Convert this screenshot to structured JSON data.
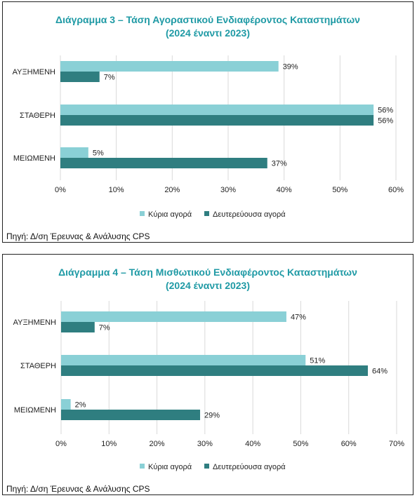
{
  "charts": [
    {
      "title": "Διάγραμμα 3 – Τάση Αγοραστικού Ενδιαφέροντος Καταστημάτων",
      "subtitle": "(2024 έναντι 2023)",
      "source": "Πηγή: Δ/ση Έρευνας & Ανάλυσης CPS"
    },
    {
      "title": "Διάγραμμα 4 – Τάση Μισθωτικού Ενδιαφέροντος Καταστημάτων",
      "subtitle": "(2024 έναντι 2023)",
      "source": "Πηγή: Δ/ση Έρευνας & Ανάλυσης CPS"
    }
  ],
  "colors": {
    "primary": "#8ad0d6",
    "secondary": "#2f7e80",
    "title": "#1f9aa5",
    "grid": "#d9d9d9"
  },
  "chart_data": [
    {
      "type": "bar",
      "orientation": "horizontal",
      "title": "Διάγραμμα 3 – Τάση Αγοραστικού Ενδιαφέροντος Καταστημάτων",
      "subtitle": "(2024 έναντι 2023)",
      "categories": [
        "ΑΥΞΗΜΕΝΗ",
        "ΣΤΑΘΕΡΗ",
        "ΜΕΙΩΜΕΝΗ"
      ],
      "series": [
        {
          "name": "Κύρια αγορά",
          "values": [
            39,
            56,
            5
          ]
        },
        {
          "name": "Δευτερεύουσα αγορά",
          "values": [
            7,
            56,
            37
          ]
        }
      ],
      "data_labels": [
        [
          "39%",
          "56%",
          "5%"
        ],
        [
          "7%",
          "56%",
          "37%"
        ]
      ],
      "xlim": [
        0,
        60
      ],
      "xticks": [
        "0%",
        "10%",
        "20%",
        "30%",
        "40%",
        "50%",
        "60%"
      ],
      "grid": true,
      "legend": "bottom"
    },
    {
      "type": "bar",
      "orientation": "horizontal",
      "title": "Διάγραμμα 4 – Τάση Μισθωτικού Ενδιαφέροντος Καταστημάτων",
      "subtitle": "(2024 έναντι 2023)",
      "categories": [
        "ΑΥΞΗΜΕΝΗ",
        "ΣΤΑΘΕΡΗ",
        "ΜΕΙΩΜΕΝΗ"
      ],
      "series": [
        {
          "name": "Κύρια αγορά",
          "values": [
            47,
            51,
            2
          ]
        },
        {
          "name": "Δευτερεύουσα αγορά",
          "values": [
            7,
            64,
            29
          ]
        }
      ],
      "data_labels": [
        [
          "47%",
          "51%",
          "2%"
        ],
        [
          "7%",
          "64%",
          "29%"
        ]
      ],
      "xlim": [
        0,
        70
      ],
      "xticks": [
        "0%",
        "10%",
        "20%",
        "30%",
        "40%",
        "50%",
        "60%",
        "70%"
      ],
      "grid": true,
      "legend": "bottom"
    }
  ]
}
